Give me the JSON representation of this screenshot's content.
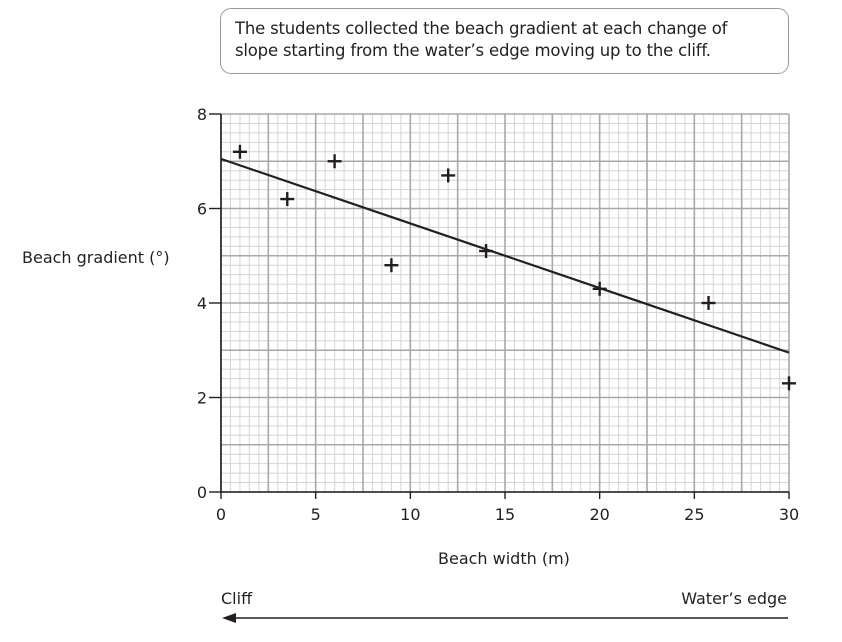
{
  "callout": {
    "line1": "The students collected the beach gradient at each change of",
    "line2": "slope starting from the water’s edge moving up to the cliff."
  },
  "labels": {
    "ylabel": "Beach gradient (°)",
    "xlabel": "Beach width (m)",
    "left_direction": "Cliff",
    "right_direction": "Water’s edge"
  },
  "colors": {
    "ink": "#231f20",
    "grid_minor": "#d4d4d6",
    "grid_major": "#a8a8aa",
    "callout_border": "#9a9a9a"
  },
  "chart_data": {
    "type": "scatter",
    "title": "",
    "xlabel": "Beach width (m)",
    "ylabel": "Beach gradient (°)",
    "xlim": [
      0,
      30
    ],
    "ylim": [
      0,
      8
    ],
    "x_ticks": [
      0,
      5,
      10,
      15,
      20,
      25,
      30
    ],
    "y_ticks": [
      0,
      2,
      4,
      6,
      8
    ],
    "grid": true,
    "grid_minor_x": 0.5,
    "grid_minor_y": 0.2,
    "grid_major_x": 2.5,
    "grid_major_y": 1,
    "marker": "+",
    "points": [
      {
        "x": 1,
        "y": 7.2
      },
      {
        "x": 3.5,
        "y": 6.2
      },
      {
        "x": 6,
        "y": 7.0
      },
      {
        "x": 9,
        "y": 4.8
      },
      {
        "x": 12,
        "y": 6.7
      },
      {
        "x": 14,
        "y": 5.1
      },
      {
        "x": 20,
        "y": 4.3
      },
      {
        "x": 25.75,
        "y": 4.0
      },
      {
        "x": 30,
        "y": 2.3
      }
    ],
    "best_fit_line": {
      "x0": 0,
      "y0": 7.05,
      "x1": 30,
      "y1": 2.95
    },
    "annotations": [
      "Cliff",
      "Water’s edge"
    ]
  }
}
